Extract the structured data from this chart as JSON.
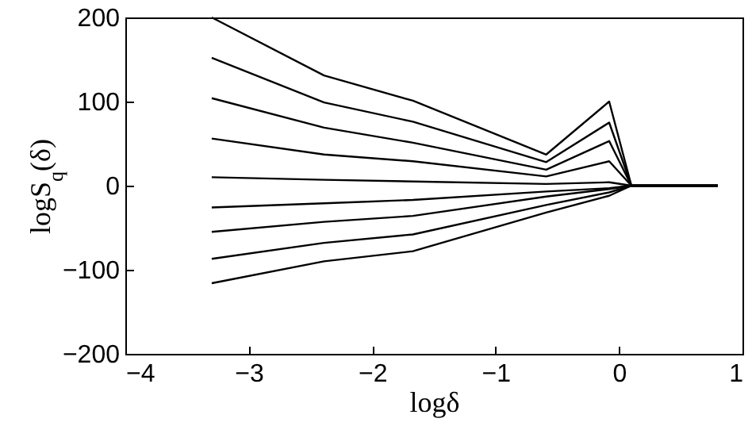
{
  "chart_data": {
    "type": "line",
    "xlabel": "logδ",
    "ylabel": "logS$_{q}$(δ)",
    "x": [
      -3.3,
      -2.39,
      -1.67,
      -0.59,
      -0.08,
      0.1,
      0.8
    ],
    "series": [
      {
        "color": "#000000",
        "values": [
          200,
          131,
          101,
          37,
          100,
          0,
          0
        ]
      },
      {
        "color": "#000000",
        "values": [
          152,
          99,
          76,
          28,
          75,
          0,
          0
        ]
      },
      {
        "color": "#000000",
        "values": [
          104,
          69,
          51,
          19,
          53,
          0,
          0
        ]
      },
      {
        "color": "#000000",
        "values": [
          56,
          37,
          29,
          11,
          29,
          0,
          0
        ]
      },
      {
        "color": "#000000",
        "values": [
          10,
          7,
          5,
          2,
          4,
          0,
          0
        ]
      },
      {
        "color": "#000000",
        "values": [
          -26,
          -21,
          -17,
          -7,
          -3,
          0,
          0
        ]
      },
      {
        "color": "#000000",
        "values": [
          -55,
          -43,
          -36,
          -13,
          -4,
          0,
          0
        ]
      },
      {
        "color": "#000000",
        "values": [
          -87,
          -68,
          -58,
          -23,
          -8,
          0,
          0
        ]
      },
      {
        "color": "#000000",
        "values": [
          -116,
          -90,
          -78,
          -32,
          -12,
          0,
          0
        ]
      }
    ],
    "xlim": [
      -4,
      1
    ],
    "xticks": [
      -4,
      -3,
      -2,
      -1,
      0,
      1
    ],
    "ylim": [
      -200,
      200
    ],
    "yticks": [
      -200,
      -100,
      0,
      100,
      200
    ],
    "grid": false,
    "marker": "none",
    "line_style": "solid"
  }
}
